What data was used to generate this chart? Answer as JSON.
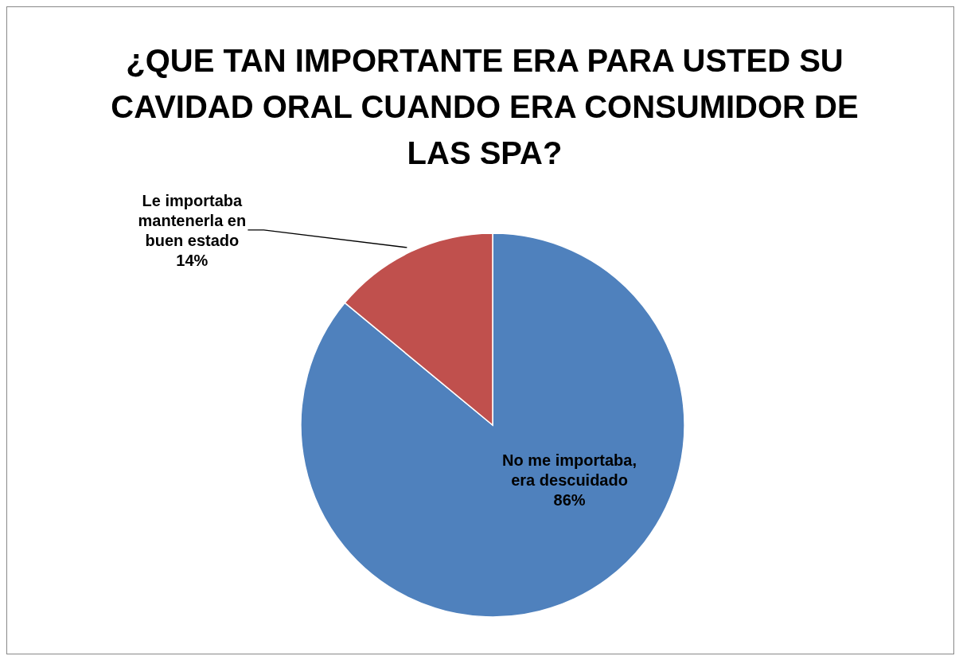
{
  "chart_data": {
    "type": "pie",
    "title": "¿QUE TAN IMPORTANTE ERA PARA USTED SU CAVIDAD ORAL CUANDO ERA CONSUMIDOR DE LAS SPA?",
    "categories": [
      "No me importaba, era descuidado",
      "Le importaba mantenerla en buen estado"
    ],
    "values": [
      86,
      14
    ],
    "colors": [
      "#4f81bd",
      "#c0504d"
    ],
    "value_labels": [
      "86%",
      "14%"
    ]
  }
}
